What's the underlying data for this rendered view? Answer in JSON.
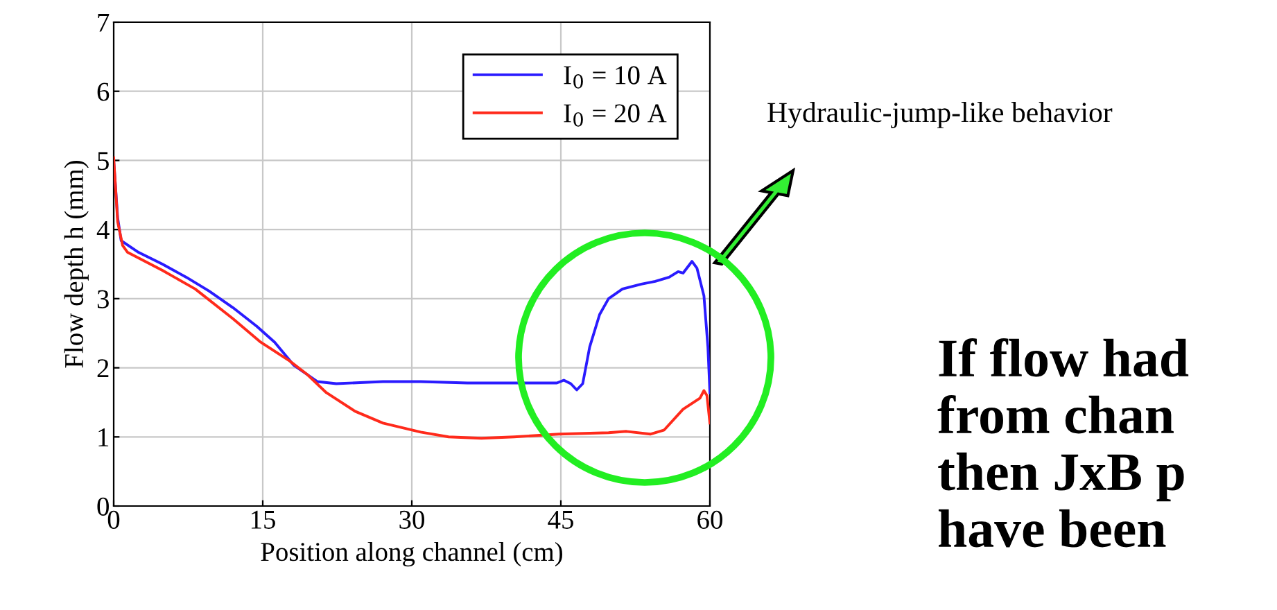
{
  "chart_data": {
    "type": "line",
    "xlabel": "Position along channel (cm)",
    "ylabel": "Flow depth h (mm)",
    "xlim": [
      0,
      60
    ],
    "xticks": [
      0,
      15,
      30,
      45,
      60
    ],
    "ylim": [
      0,
      7
    ],
    "yticks": [
      0,
      1,
      2,
      3,
      4,
      5,
      6,
      7
    ],
    "grid": true,
    "legend": "top right",
    "series": [
      {
        "name": "I$_{0}$ = 10 A",
        "color": "#2a1bff",
        "x": [
          0,
          0.4,
          0.75,
          2.5,
          4.9,
          7.3,
          9.6,
          12,
          14.4,
          16.2,
          18.1,
          20.5,
          22.4,
          27.1,
          30.9,
          35.6,
          40.3,
          44.6,
          45.3,
          46,
          46.6,
          47.2,
          47.9,
          48.9,
          49.8,
          51.2,
          53.1,
          54.5,
          55.9,
          56.8,
          57.3,
          58.2,
          58.7,
          59.4,
          59.8,
          60
        ],
        "values": [
          5.0,
          4.17,
          3.84,
          3.67,
          3.5,
          3.31,
          3.11,
          2.87,
          2.6,
          2.37,
          2.04,
          1.8,
          1.77,
          1.8,
          1.8,
          1.78,
          1.78,
          1.78,
          1.82,
          1.77,
          1.68,
          1.77,
          2.3,
          2.77,
          3.0,
          3.14,
          3.21,
          3.25,
          3.31,
          3.39,
          3.37,
          3.54,
          3.44,
          3.04,
          2.3,
          1.64
        ]
      },
      {
        "name": "I$_{0}$ = 20 A",
        "color": "#ff2a1b",
        "x": [
          0,
          0.4,
          0.9,
          1.4,
          4.9,
          8.2,
          12,
          14.8,
          17.7,
          19.5,
          21.4,
          24.3,
          27.1,
          30.9,
          33.7,
          37,
          40.3,
          44.8,
          49.8,
          51.6,
          54,
          55.4,
          57.3,
          59,
          59.4,
          59.7,
          60
        ],
        "values": [
          5.04,
          4.11,
          3.77,
          3.67,
          3.41,
          3.14,
          2.71,
          2.37,
          2.1,
          1.9,
          1.64,
          1.37,
          1.2,
          1.07,
          1.0,
          0.98,
          1.0,
          1.04,
          1.06,
          1.08,
          1.04,
          1.1,
          1.4,
          1.56,
          1.67,
          1.6,
          1.2
        ]
      }
    ],
    "annotations": [
      "Hydraulic-jump-like behavior",
      "If flow had",
      "from chan",
      "then JxB p",
      "have been"
    ]
  }
}
